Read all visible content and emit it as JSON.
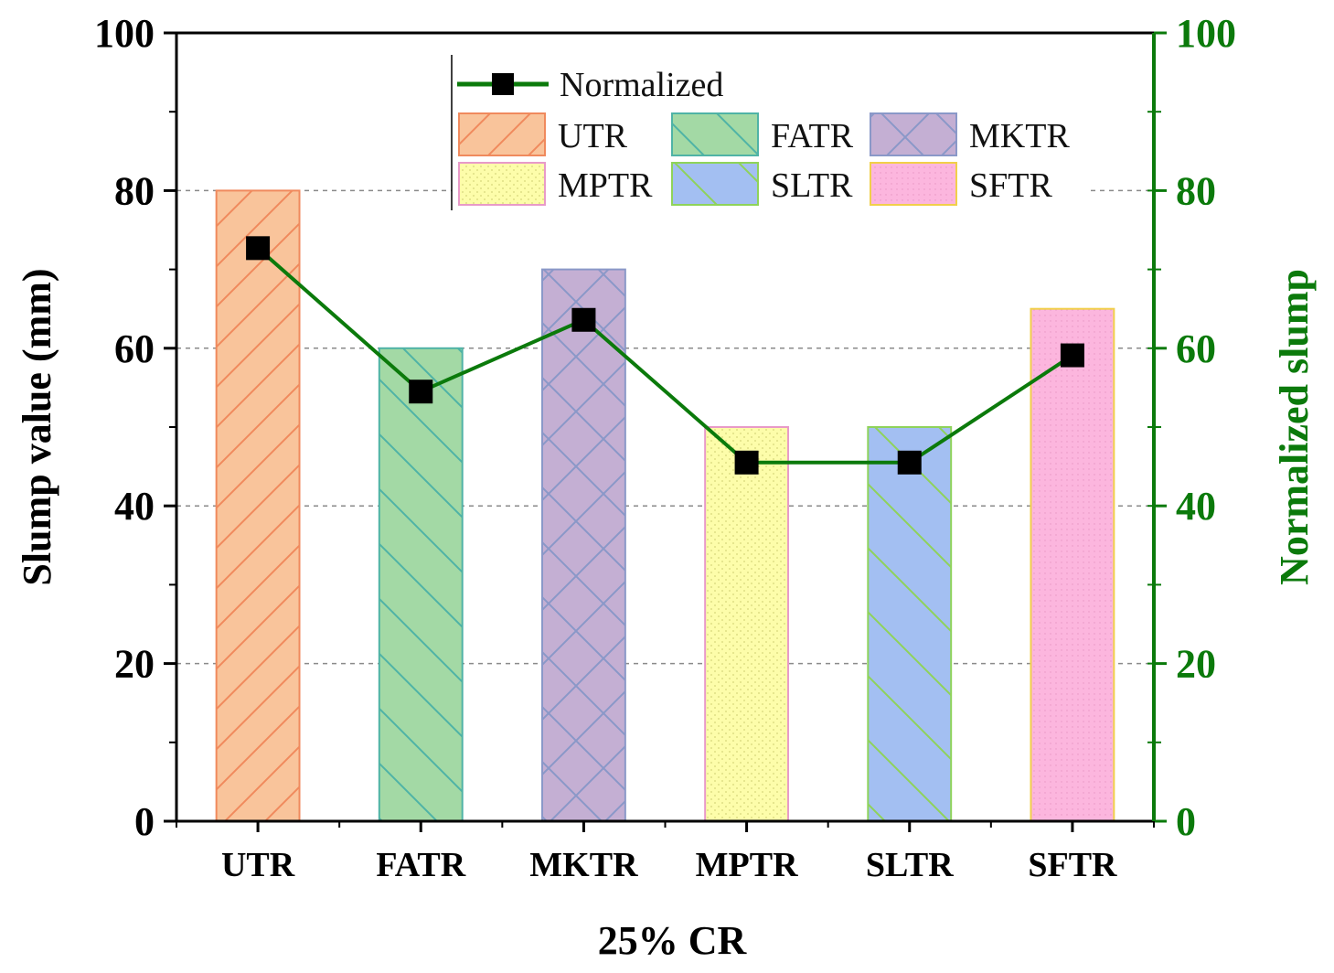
{
  "chart_data": {
    "type": "bar",
    "categories": [
      "UTR",
      "FATR",
      "MKTR",
      "MPTR",
      "SLTR",
      "SFTR"
    ],
    "series": [
      {
        "name": "Slump value",
        "axis": "left",
        "values": [
          80,
          60,
          70,
          50,
          50,
          65
        ]
      },
      {
        "name": "Normalized",
        "axis": "right",
        "type": "line",
        "values": [
          72.7,
          54.5,
          63.6,
          45.5,
          45.5,
          59.1
        ]
      }
    ],
    "legend": {
      "line_label": "Normalized",
      "bar_labels": [
        "UTR",
        "FATR",
        "MKTR",
        "MPTR",
        "SLTR",
        "SFTR"
      ],
      "placement": "top-center"
    },
    "xlabel": "25% CR",
    "ylabel": "Slump value (mm)",
    "y2label": "Normalized slump",
    "ylim": [
      0,
      100
    ],
    "y2lim": [
      0,
      100
    ],
    "yticks": [
      "0",
      "20",
      "40",
      "60",
      "80",
      "100"
    ],
    "y2ticks": [
      "0",
      "20",
      "40",
      "60",
      "80",
      "100"
    ],
    "grid": "horizontal dashed",
    "colors": {
      "line": "#0b7a0b",
      "marker": "#000000",
      "right_axis": "#0b7a0b",
      "bars": [
        {
          "fill": "#f9c49b",
          "stroke": "#f08a5d",
          "pattern": "forward-diagonal"
        },
        {
          "fill": "#a3d9a5",
          "stroke": "#4fb3a6",
          "pattern": "back-diagonal"
        },
        {
          "fill": "#c4afd3",
          "stroke": "#8a98c8",
          "pattern": "cross-diagonal"
        },
        {
          "fill": "#fdfdaa",
          "stroke": "#e89ac8",
          "pattern": "dots"
        },
        {
          "fill": "#a3bff2",
          "stroke": "#8fd35a",
          "pattern": "back-diagonal"
        },
        {
          "fill": "#fcb6de",
          "stroke": "#f1cf4a",
          "pattern": "fine-dots"
        }
      ]
    }
  }
}
